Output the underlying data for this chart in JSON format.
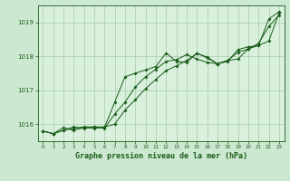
{
  "title": "Graphe pression niveau de la mer (hPa)",
  "background_color": "#cde8d0",
  "plot_bg_color": "#d8f0dc",
  "grid_color": "#aaccaa",
  "line_color": "#1a5c1a",
  "xlim": [
    -0.5,
    23.5
  ],
  "ylim": [
    1015.5,
    1019.5
  ],
  "yticks": [
    1016,
    1017,
    1018,
    1019
  ],
  "xticks": [
    0,
    1,
    2,
    3,
    4,
    5,
    6,
    7,
    8,
    9,
    10,
    11,
    12,
    13,
    14,
    15,
    16,
    17,
    18,
    19,
    20,
    21,
    22,
    23
  ],
  "series1": [
    1015.8,
    1015.72,
    1015.9,
    1015.82,
    1015.9,
    1015.88,
    1015.9,
    1016.65,
    1017.4,
    1017.5,
    1017.6,
    1017.7,
    1018.1,
    1017.85,
    1017.82,
    1018.1,
    1017.95,
    1017.78,
    1017.85,
    1018.2,
    1018.28,
    1018.32,
    1019.1,
    1019.32
  ],
  "series2": [
    1015.8,
    1015.72,
    1015.82,
    1015.92,
    1015.88,
    1015.92,
    1015.88,
    1016.3,
    1016.65,
    1017.1,
    1017.4,
    1017.62,
    1017.85,
    1017.9,
    1018.05,
    1017.92,
    1017.82,
    1017.78,
    1017.88,
    1017.92,
    1018.22,
    1018.32,
    1018.45,
    1019.28
  ],
  "series3": [
    1015.8,
    1015.72,
    1015.82,
    1015.88,
    1015.92,
    1015.92,
    1015.92,
    1016.0,
    1016.42,
    1016.72,
    1017.05,
    1017.32,
    1017.58,
    1017.72,
    1017.88,
    1018.08,
    1017.98,
    1017.78,
    1017.88,
    1018.12,
    1018.22,
    1018.38,
    1018.88,
    1019.22
  ]
}
